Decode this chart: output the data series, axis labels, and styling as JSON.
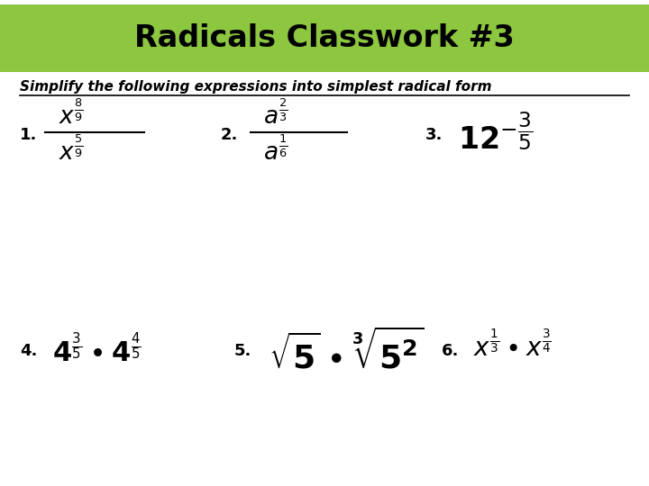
{
  "title": "Radicals Classwork #3",
  "subtitle": "Simplify the following expressions into simplest radical form",
  "title_bg_color": "#8dc63f",
  "title_text_color": "#000000",
  "bg_color": "#ffffff",
  "fig_width": 7.2,
  "fig_height": 5.4,
  "dpi": 100
}
